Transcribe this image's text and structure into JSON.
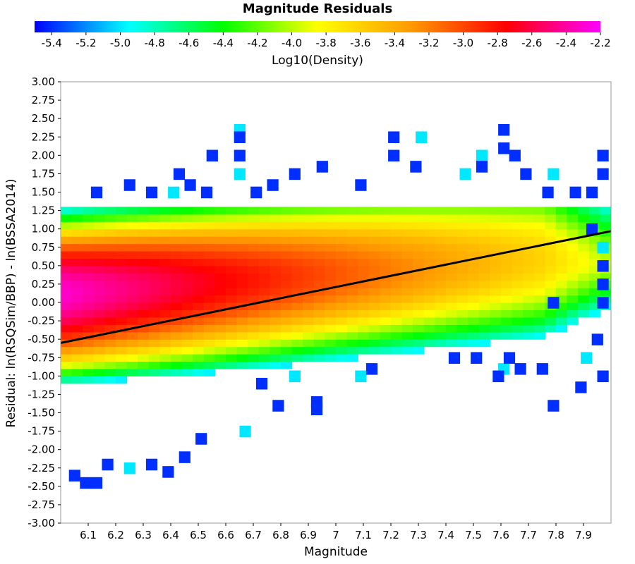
{
  "chart_data": {
    "type": "heatmap",
    "title": "Magnitude Residuals",
    "xlabel": "Magnitude",
    "ylabel": "Residual: ln(RSQSim/BBP) - ln(BSSA2014)",
    "colorbar_label": "Log10(Density)",
    "xlim": [
      6.0,
      8.0
    ],
    "ylim": [
      -3.0,
      3.0
    ],
    "x_ticks": [
      "6.1",
      "6.2",
      "6.3",
      "6.4",
      "6.5",
      "6.6",
      "6.7",
      "6.8",
      "6.9",
      "7",
      "7.1",
      "7.2",
      "7.3",
      "7.4",
      "7.5",
      "7.6",
      "7.7",
      "7.8",
      "7.9"
    ],
    "y_ticks": [
      "3.00",
      "2.75",
      "2.50",
      "2.25",
      "2.00",
      "1.75",
      "1.50",
      "1.25",
      "1.00",
      "0.75",
      "0.50",
      "0.25",
      "0.00",
      "-0.25",
      "-0.50",
      "-0.75",
      "-1.00",
      "-1.25",
      "-1.50",
      "-1.75",
      "-2.00",
      "-2.25",
      "-2.50",
      "-2.75",
      "-3.00"
    ],
    "colorbar_ticks": [
      "-5.4",
      "-5.2",
      "-5.0",
      "-4.8",
      "-4.6",
      "-4.4",
      "-4.2",
      "-4.0",
      "-3.8",
      "-3.6",
      "-3.4",
      "-3.2",
      "-3.0",
      "-2.8",
      "-2.6",
      "-2.4",
      "-2.2"
    ],
    "colorbar_range": [
      -5.5,
      -2.2
    ],
    "colormap": [
      "#0000ff",
      "#00ffff",
      "#00ff00",
      "#ffff00",
      "#ff9900",
      "#ff0000",
      "#ff00ff"
    ],
    "bin_size": {
      "x": 0.04,
      "y": 0.1
    },
    "fit_line": {
      "x": [
        6.0,
        8.0
      ],
      "y": [
        -0.55,
        0.97
      ],
      "color": "#000000"
    },
    "outlier_cells": [
      [
        6.65,
        2.35
      ],
      [
        6.65,
        2.25
      ],
      [
        6.55,
        2.0
      ],
      [
        6.65,
        2.0
      ],
      [
        6.43,
        1.75
      ],
      [
        6.65,
        1.75
      ],
      [
        6.77,
        1.6
      ],
      [
        6.85,
        1.75
      ],
      [
        6.95,
        1.85
      ],
      [
        7.21,
        2.25
      ],
      [
        7.31,
        2.25
      ],
      [
        7.21,
        2.0
      ],
      [
        7.29,
        1.85
      ],
      [
        7.61,
        2.35
      ],
      [
        7.61,
        2.1
      ],
      [
        7.53,
        2.0
      ],
      [
        7.65,
        2.0
      ],
      [
        7.97,
        2.0
      ],
      [
        7.97,
        1.75
      ],
      [
        7.69,
        1.75
      ],
      [
        7.79,
        1.75
      ],
      [
        7.53,
        1.85
      ],
      [
        6.13,
        1.5
      ],
      [
        6.25,
        1.6
      ],
      [
        6.33,
        1.5
      ],
      [
        6.41,
        1.5
      ],
      [
        6.47,
        1.6
      ],
      [
        6.53,
        1.5
      ],
      [
        6.71,
        1.5
      ],
      [
        7.09,
        1.6
      ],
      [
        7.47,
        1.75
      ],
      [
        7.77,
        1.5
      ],
      [
        7.87,
        1.5
      ],
      [
        7.93,
        1.5
      ],
      [
        7.93,
        1.0
      ],
      [
        7.97,
        0.75
      ],
      [
        7.97,
        0.5
      ],
      [
        7.97,
        0.25
      ],
      [
        7.97,
        0.0
      ],
      [
        7.95,
        -0.5
      ],
      [
        7.91,
        -0.75
      ],
      [
        7.97,
        -1.0
      ],
      [
        7.89,
        -1.15
      ],
      [
        7.79,
        -1.4
      ],
      [
        7.67,
        -0.9
      ],
      [
        7.61,
        -0.9
      ],
      [
        7.59,
        -1.0
      ],
      [
        7.51,
        -0.75
      ],
      [
        7.43,
        -0.75
      ],
      [
        7.63,
        -0.75
      ],
      [
        7.09,
        -1.0
      ],
      [
        7.13,
        -0.9
      ],
      [
        6.93,
        -1.35
      ],
      [
        6.93,
        -1.45
      ],
      [
        6.79,
        -1.4
      ],
      [
        6.67,
        -1.75
      ],
      [
        6.51,
        -1.85
      ],
      [
        6.45,
        -2.1
      ],
      [
        6.39,
        -2.3
      ],
      [
        6.33,
        -2.2
      ],
      [
        6.25,
        -2.25
      ],
      [
        6.17,
        -2.2
      ],
      [
        6.05,
        -2.35
      ],
      [
        6.09,
        -2.45
      ],
      [
        6.13,
        -2.45
      ],
      [
        6.85,
        -1.0
      ],
      [
        6.73,
        -1.1
      ],
      [
        7.79,
        0.0
      ],
      [
        7.75,
        -0.9
      ]
    ]
  }
}
